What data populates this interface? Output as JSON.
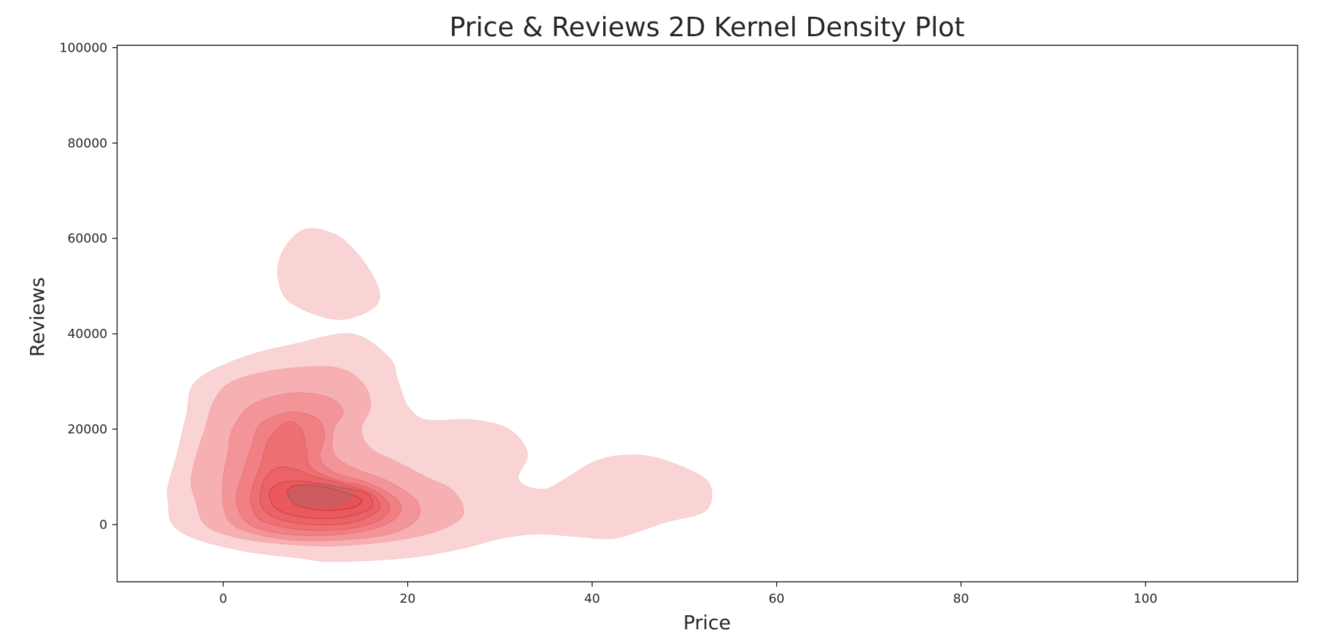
{
  "chart_data": {
    "type": "kde2d",
    "title": "Price & Reviews 2D Kernel Density Plot",
    "xlabel": "Price",
    "ylabel": "Reviews",
    "xlim": [
      -11.5,
      116.5
    ],
    "ylim": [
      -12000,
      100500
    ],
    "xticks": [
      0,
      20,
      40,
      60,
      80,
      100
    ],
    "yticks": [
      0,
      20000,
      40000,
      60000,
      80000,
      100000
    ],
    "grid": false,
    "legend": "none",
    "fill_color": "#e8363c",
    "fill_opacity": 0.22,
    "density_peak": {
      "x": 10.5,
      "y": 6000
    },
    "levels": [
      {
        "level": 1,
        "regions": [
          [
            [
              -6,
              5000
            ],
            [
              -5.5,
              0
            ],
            [
              -3,
              -3000
            ],
            [
              2,
              -5500
            ],
            [
              8,
              -7000
            ],
            [
              12,
              -7800
            ],
            [
              20,
              -7000
            ],
            [
              26,
              -5000
            ],
            [
              30,
              -3000
            ],
            [
              34,
              -2000
            ],
            [
              38,
              -2500
            ],
            [
              42,
              -3000
            ],
            [
              45,
              -1500
            ],
            [
              48,
              500
            ],
            [
              52,
              2500
            ],
            [
              53,
              6000
            ],
            [
              52,
              10000
            ],
            [
              47,
              14000
            ],
            [
              43,
              14500
            ],
            [
              40,
              13000
            ],
            [
              37,
              9500
            ],
            [
              35,
              7500
            ],
            [
              33,
              8000
            ],
            [
              32,
              10000
            ],
            [
              33,
              15000
            ],
            [
              31,
              20000
            ],
            [
              27,
              22000
            ],
            [
              22,
              22000
            ],
            [
              20,
              25000
            ],
            [
              19,
              30000
            ],
            [
              18,
              35000
            ],
            [
              14,
              40000
            ],
            [
              8,
              38000
            ],
            [
              2,
              35000
            ],
            [
              -3,
              30000
            ],
            [
              -4,
              23000
            ],
            [
              -5,
              15000
            ],
            [
              -6,
              8000
            ]
          ],
          [
            [
              6,
              55000
            ],
            [
              7,
              59000
            ],
            [
              9,
              62000
            ],
            [
              12,
              61000
            ],
            [
              14,
              58000
            ],
            [
              16,
              53000
            ],
            [
              17,
              48000
            ],
            [
              16,
              45000
            ],
            [
              13,
              43000
            ],
            [
              10,
              44000
            ],
            [
              7,
              47000
            ],
            [
              6,
              51000
            ]
          ]
        ]
      },
      {
        "level": 2,
        "regions": [
          [
            [
              -3,
              5000
            ],
            [
              -2,
              0
            ],
            [
              1,
              -2500
            ],
            [
              6,
              -4000
            ],
            [
              12,
              -4500
            ],
            [
              18,
              -3500
            ],
            [
              23,
              -1500
            ],
            [
              26,
              2000
            ],
            [
              25,
              7000
            ],
            [
              22,
              10000
            ],
            [
              19,
              13000
            ],
            [
              16,
              16000
            ],
            [
              15,
              20000
            ],
            [
              16,
              25000
            ],
            [
              15,
              30000
            ],
            [
              12,
              33000
            ],
            [
              6,
              32500
            ],
            [
              1,
              30000
            ],
            [
              -1,
              26000
            ],
            [
              -2,
              20000
            ],
            [
              -3,
              14000
            ],
            [
              -3.5,
              9000
            ]
          ]
        ]
      },
      {
        "level": 3,
        "regions": [
          [
            [
              0,
              4000
            ],
            [
              1,
              0
            ],
            [
              4,
              -2200
            ],
            [
              8,
              -3300
            ],
            [
              13,
              -3200
            ],
            [
              18,
              -2000
            ],
            [
              21,
              1000
            ],
            [
              21,
              5000
            ],
            [
              18,
              9000
            ],
            [
              14,
              12000
            ],
            [
              12,
              15000
            ],
            [
              12,
              20000
            ],
            [
              13,
              24000
            ],
            [
              11,
              27000
            ],
            [
              7,
              27500
            ],
            [
              3,
              25000
            ],
            [
              1,
              20000
            ],
            [
              0.5,
              15000
            ],
            [
              0,
              10000
            ]
          ]
        ]
      },
      {
        "level": 4,
        "regions": [
          [
            [
              1.5,
              4000
            ],
            [
              2.5,
              500
            ],
            [
              5,
              -1500
            ],
            [
              9,
              -2300
            ],
            [
              13,
              -2000
            ],
            [
              17,
              -500
            ],
            [
              19,
              2000
            ],
            [
              19,
              5000
            ],
            [
              16,
              8500
            ],
            [
              12,
              11000
            ],
            [
              10.5,
              14000
            ],
            [
              11,
              19000
            ],
            [
              10,
              22500
            ],
            [
              7,
              23500
            ],
            [
              4,
              21000
            ],
            [
              3,
              16000
            ],
            [
              2,
              10000
            ],
            [
              1.5,
              7000
            ]
          ]
        ]
      },
      {
        "level": 5,
        "regions": [
          [
            [
              3,
              4500
            ],
            [
              4,
              1000
            ],
            [
              7,
              -700
            ],
            [
              10,
              -1200
            ],
            [
              14,
              -800
            ],
            [
              17,
              1000
            ],
            [
              18,
              4000
            ],
            [
              16,
              7500
            ],
            [
              12,
              9500
            ],
            [
              9.5,
              12000
            ],
            [
              9,
              16000
            ],
            [
              8.5,
              20000
            ],
            [
              7,
              21500
            ],
            [
              5,
              18000
            ],
            [
              4,
              12000
            ],
            [
              3.2,
              8000
            ]
          ]
        ]
      },
      {
        "level": 6,
        "regions": [
          [
            [
              4,
              5000
            ],
            [
              5,
              2000
            ],
            [
              8,
              300
            ],
            [
              12,
              0
            ],
            [
              15,
              1000
            ],
            [
              17,
              3500
            ],
            [
              16,
              6500
            ],
            [
              13,
              8500
            ],
            [
              10,
              10000
            ],
            [
              8,
              11500
            ],
            [
              6,
              12000
            ],
            [
              4.5,
              9500
            ]
          ]
        ]
      },
      {
        "level": 7,
        "regions": [
          [
            [
              5,
              6000
            ],
            [
              6,
              3000
            ],
            [
              9,
              1500
            ],
            [
              13,
              1500
            ],
            [
              16,
              3500
            ],
            [
              15.5,
              6500
            ],
            [
              12,
              8000
            ],
            [
              9,
              9000
            ],
            [
              7,
              9000
            ],
            [
              5.5,
              8000
            ]
          ]
        ]
      },
      {
        "level": 8,
        "regions": [
          [
            [
              7,
              6500
            ],
            [
              8,
              4000
            ],
            [
              11,
              3000
            ],
            [
              14,
              3500
            ],
            [
              15,
              5200
            ],
            [
              13,
              6800
            ],
            [
              10.5,
              8000
            ],
            [
              8.5,
              8300
            ],
            [
              7.3,
              7800
            ]
          ]
        ]
      }
    ]
  }
}
